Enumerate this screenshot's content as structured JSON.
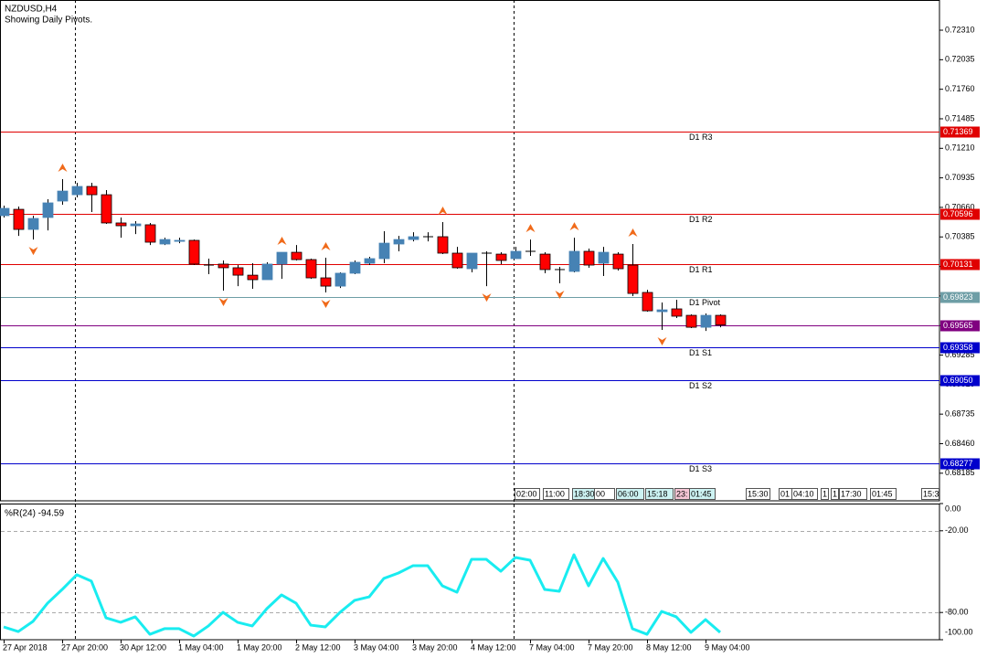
{
  "chart_data": [
    {
      "type": "candlestick",
      "title": "NZDUSD,H4",
      "subtitle": "Showing Daily Pivots.",
      "ylim": [
        0.67928,
        0.72591
      ],
      "yticks": [
        {
          "value": 0.7231,
          "label": "0.72310"
        },
        0.72035,
        {
          "value": 0.7176,
          "label": "0.71760"
        },
        0.71485,
        {
          "value": 0.7121,
          "label": "0.71210"
        },
        0.70935,
        {
          "value": 0.7066,
          "label": "0.70660"
        },
        0.70385,
        {
          "value": 0.7011,
          "label": "0.70110"
        },
        0.69835,
        {
          "value": 0.6956,
          "label": "0.69560"
        },
        0.69285,
        {
          "value": 0.6901,
          "label": "0.69010"
        },
        0.68735,
        {
          "value": 0.6846,
          "label": "0.68460"
        },
        0.68185
      ],
      "up_color": "#4682b4",
      "down_color": "#ff0000",
      "doji_color": "#000000",
      "fractal_color": "#f06a1a",
      "ohlc": [
        [
          0.70583,
          0.70676,
          0.70566,
          0.70651
        ],
        [
          0.70642,
          0.70668,
          0.70395,
          0.70455
        ],
        [
          0.70455,
          0.70583,
          0.70361,
          0.70557
        ],
        [
          0.70566,
          0.70736,
          0.70446,
          0.70702
        ],
        [
          0.70719,
          0.70923,
          0.70685,
          0.70812
        ],
        [
          0.70778,
          0.70889,
          0.70753,
          0.70855
        ],
        [
          0.70855,
          0.70889,
          0.70617,
          0.70778
        ],
        [
          0.70778,
          0.70821,
          0.70506,
          0.70515
        ],
        [
          0.70515,
          0.70566,
          0.70378,
          0.70489
        ],
        [
          0.70489,
          0.70532,
          0.70412,
          0.70506
        ],
        [
          0.70498,
          0.70515,
          0.7031,
          0.70336
        ],
        [
          0.70319,
          0.70378,
          0.7031,
          0.70361
        ],
        [
          0.70344,
          0.70378,
          0.70327,
          0.70353
        ],
        [
          0.70353,
          0.70361,
          0.70123,
          0.70132
        ],
        [
          0.70123,
          0.70183,
          0.70038,
          0.70123
        ],
        [
          0.70132,
          0.70166,
          0.69885,
          0.70098
        ],
        [
          0.70098,
          0.70123,
          0.69927,
          0.70029
        ],
        [
          0.70029,
          0.7014,
          0.69902,
          0.69987
        ],
        [
          0.69987,
          0.70149,
          0.69987,
          0.70132
        ],
        [
          0.70132,
          0.70242,
          0.69995,
          0.70242
        ],
        [
          0.70242,
          0.7031,
          0.70166,
          0.70174
        ],
        [
          0.70174,
          0.70183,
          0.69995,
          0.70004
        ],
        [
          0.70004,
          0.70191,
          0.69868,
          0.69927
        ],
        [
          0.69927,
          0.70055,
          0.6991,
          0.70047
        ],
        [
          0.70047,
          0.70166,
          0.70038,
          0.70149
        ],
        [
          0.7014,
          0.702,
          0.70123,
          0.70183
        ],
        [
          0.70183,
          0.70438,
          0.7014,
          0.70327
        ],
        [
          0.70319,
          0.70395,
          0.70251,
          0.70361
        ],
        [
          0.70361,
          0.70429,
          0.70344,
          0.70387
        ],
        [
          0.70387,
          0.70429,
          0.70344,
          0.70387
        ],
        [
          0.70387,
          0.70523,
          0.70225,
          0.70234
        ],
        [
          0.70234,
          0.70293,
          0.70089,
          0.70098
        ],
        [
          0.70089,
          0.70234,
          0.70055,
          0.70234
        ],
        [
          0.70234,
          0.70251,
          0.69927,
          0.70234
        ],
        [
          0.70225,
          0.70242,
          0.70132,
          0.70166
        ],
        [
          0.70183,
          0.70293,
          0.70183,
          0.70251
        ],
        [
          0.70251,
          0.70361,
          0.70208,
          0.70251
        ],
        [
          0.70225,
          0.70242,
          0.70047,
          0.70081
        ],
        [
          0.70081,
          0.70106,
          0.69953,
          0.70081
        ],
        [
          0.70064,
          0.70378,
          0.70055,
          0.70251
        ],
        [
          0.70251,
          0.70276,
          0.70098,
          0.70123
        ],
        [
          0.7014,
          0.70293,
          0.70021,
          0.70242
        ],
        [
          0.70225,
          0.70242,
          0.70072,
          0.70089
        ],
        [
          0.70123,
          0.70319,
          0.69834,
          0.69859
        ],
        [
          0.69868,
          0.69893,
          0.69689,
          0.69697
        ],
        [
          0.69689,
          0.69774,
          0.69519,
          0.69706
        ],
        [
          0.69715,
          0.698,
          0.6963,
          0.69647
        ],
        [
          0.69655,
          0.69664,
          0.69536,
          0.69544
        ],
        [
          0.69544,
          0.69672,
          0.6951,
          0.69655
        ],
        [
          0.69655,
          0.69664,
          0.69544,
          0.69565
        ]
      ],
      "fractals": {
        "up": [
          4,
          19,
          22,
          30,
          36,
          39,
          43
        ],
        "down": [
          2,
          15,
          22,
          33,
          38,
          45
        ]
      },
      "levels": [
        {
          "name": "D1 R3",
          "value": 0.71369,
          "color": "#e00000"
        },
        {
          "name": "D1 R2",
          "value": 0.70596,
          "color": "#e00000"
        },
        {
          "name": "D1 R1",
          "value": 0.70131,
          "color": "#e00000"
        },
        {
          "name": "D1 Pivot",
          "value": 0.69823,
          "color": "#6e9ea6"
        },
        {
          "value": 0.69565,
          "color": "#800080"
        },
        {
          "name": "D1 S1",
          "value": 0.69358,
          "color": "#0000cc"
        },
        {
          "name": "D1 S2",
          "value": 0.6905,
          "value_label": "0.69050",
          "color": "#0000cc"
        },
        {
          "name": "D1 S3",
          "value": 0.68277,
          "color": "#0000cc"
        }
      ],
      "time_labels": [
        "02:00",
        "11:00",
        "18:30",
        "00",
        "06:00",
        "15:18",
        "23:",
        "01:45",
        "15:30",
        "01",
        "04:10",
        "1",
        "1",
        "17:30",
        "01:45",
        "15:3"
      ]
    },
    {
      "type": "line",
      "title": "%R(24) -94.59",
      "color": "#19ecf0",
      "grid": true,
      "ylim": [
        -100,
        0
      ],
      "yticks": [
        {
          "value": 0,
          "label": "0.00"
        },
        {
          "value": -20,
          "label": "-20.00"
        },
        {
          "value": -80,
          "label": "-80.00"
        },
        {
          "value": -100,
          "label": "-100.00"
        }
      ],
      "categories": [
        "27 Apr 2018",
        null,
        null,
        null,
        "27 Apr 20:00",
        null,
        null,
        null,
        "30 Apr 12:00",
        null,
        null,
        null,
        "1 May 04:00",
        null,
        null,
        null,
        "1 May 20:00",
        null,
        null,
        null,
        "2 May 12:00",
        null,
        null,
        null,
        "3 May 04:00",
        null,
        null,
        null,
        "3 May 20:00",
        null,
        null,
        null,
        "4 May 12:00",
        null,
        null,
        null,
        "7 May 04:00",
        null,
        null,
        null,
        "7 May 20:00",
        null,
        null,
        null,
        "8 May 12:00",
        null,
        null,
        null,
        "9 May 04:00",
        null
      ],
      "values": [
        -90.6,
        -94.0,
        -86.6,
        -73.2,
        -63.1,
        -52.3,
        -57.0,
        -83.9,
        -87.2,
        -83.2,
        -96.0,
        -91.9,
        -91.9,
        -97.3,
        -89.9,
        -79.9,
        -87.2,
        -89.9,
        -77.2,
        -67.1,
        -73.2,
        -89.3,
        -90.6,
        -79.9,
        -71.1,
        -68.5,
        -55.0,
        -51.0,
        -45.6,
        -45.6,
        -60.4,
        -65.1,
        -40.9,
        -40.9,
        -49.7,
        -39.6,
        -41.6,
        -63.1,
        -64.4,
        -37.6,
        -60.4,
        -40.3,
        -57.7,
        -91.9,
        -96.0,
        -79.2,
        -83.2,
        -94.6,
        -85.2,
        -94.59
      ]
    }
  ]
}
